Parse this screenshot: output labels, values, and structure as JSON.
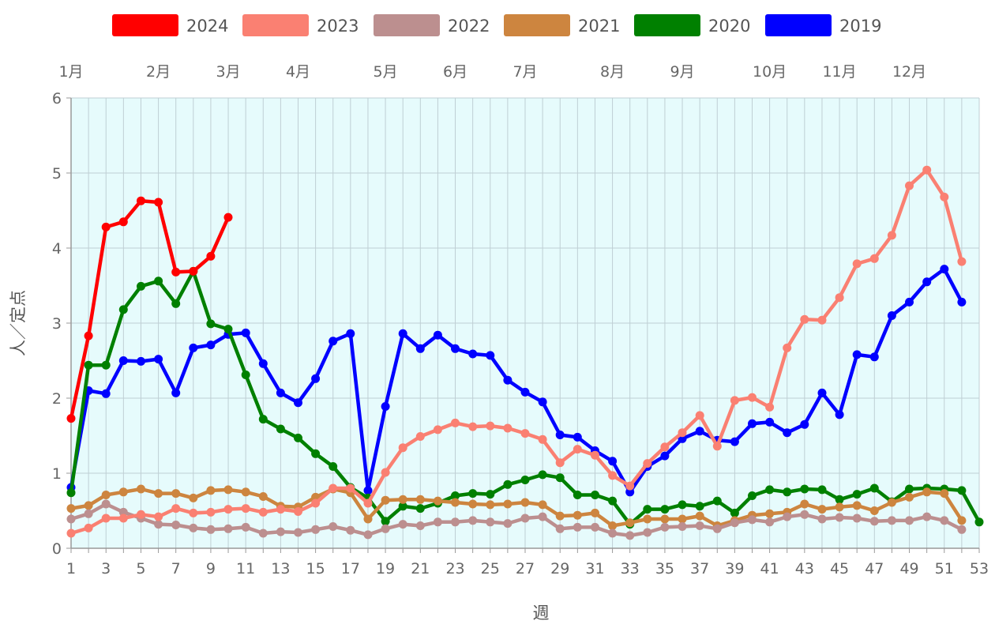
{
  "chart_data": {
    "type": "line",
    "ylabel": "人／定点",
    "xlabel": "週",
    "ylim": [
      0,
      6
    ],
    "xlim": [
      1,
      53
    ],
    "y_ticks": [
      "0",
      "1",
      "2",
      "3",
      "4",
      "5",
      "6"
    ],
    "x_ticks": [
      "1",
      "3",
      "5",
      "7",
      "9",
      "11",
      "13",
      "15",
      "17",
      "19",
      "21",
      "23",
      "25",
      "27",
      "29",
      "31",
      "33",
      "35",
      "37",
      "39",
      "41",
      "43",
      "45",
      "47",
      "49",
      "51",
      "53"
    ],
    "months": [
      {
        "label": "1月",
        "week": 1
      },
      {
        "label": "2月",
        "week": 6
      },
      {
        "label": "3月",
        "week": 10
      },
      {
        "label": "4月",
        "week": 14
      },
      {
        "label": "5月",
        "week": 19
      },
      {
        "label": "6月",
        "week": 23
      },
      {
        "label": "7月",
        "week": 27
      },
      {
        "label": "8月",
        "week": 32
      },
      {
        "label": "9月",
        "week": 36
      },
      {
        "label": "10月",
        "week": 41
      },
      {
        "label": "11月",
        "week": 45
      },
      {
        "label": "12月",
        "week": 49
      }
    ],
    "grid": true,
    "legend_position": "top",
    "plot_background": "#e6fbfc",
    "series": [
      {
        "name": "2024",
        "color": "#ff0000",
        "values": [
          1.73,
          2.83,
          4.28,
          4.35,
          4.63,
          4.61,
          3.68,
          3.69,
          3.89,
          4.41
        ]
      },
      {
        "name": "2023",
        "color": "#fa8072",
        "values": [
          0.2,
          0.27,
          0.4,
          0.4,
          0.45,
          0.42,
          0.53,
          0.47,
          0.48,
          0.52,
          0.53,
          0.48,
          0.52,
          0.49,
          0.6,
          0.8,
          0.8,
          0.6,
          1.01,
          1.34,
          1.49,
          1.58,
          1.67,
          1.62,
          1.63,
          1.6,
          1.53,
          1.45,
          1.14,
          1.32,
          1.24,
          0.97,
          0.83,
          1.13,
          1.35,
          1.54,
          1.77,
          1.36,
          1.97,
          2.01,
          1.88,
          2.67,
          3.05,
          3.04,
          3.34,
          3.79,
          3.86,
          4.17,
          4.83,
          5.04,
          4.68,
          3.82
        ]
      },
      {
        "name": "2022",
        "color": "#bc8f8f",
        "values": [
          0.39,
          0.46,
          0.59,
          0.48,
          0.4,
          0.32,
          0.31,
          0.27,
          0.25,
          0.26,
          0.28,
          0.2,
          0.22,
          0.21,
          0.25,
          0.29,
          0.24,
          0.18,
          0.26,
          0.32,
          0.3,
          0.35,
          0.35,
          0.37,
          0.35,
          0.33,
          0.4,
          0.42,
          0.26,
          0.28,
          0.28,
          0.2,
          0.17,
          0.21,
          0.28,
          0.29,
          0.3,
          0.26,
          0.34,
          0.38,
          0.35,
          0.42,
          0.45,
          0.39,
          0.41,
          0.4,
          0.36,
          0.37,
          0.37,
          0.42,
          0.37,
          0.25
        ]
      },
      {
        "name": "2021",
        "color": "#cd853f",
        "values": [
          0.53,
          0.57,
          0.71,
          0.75,
          0.79,
          0.73,
          0.73,
          0.67,
          0.77,
          0.78,
          0.75,
          0.69,
          0.56,
          0.55,
          0.68,
          0.79,
          0.74,
          0.39,
          0.64,
          0.65,
          0.65,
          0.63,
          0.61,
          0.59,
          0.58,
          0.59,
          0.61,
          0.58,
          0.43,
          0.44,
          0.47,
          0.3,
          0.34,
          0.39,
          0.39,
          0.39,
          0.43,
          0.3,
          0.37,
          0.44,
          0.46,
          0.48,
          0.59,
          0.52,
          0.55,
          0.57,
          0.5,
          0.61,
          0.68,
          0.75,
          0.73,
          0.37
        ]
      },
      {
        "name": "2020",
        "color": "#008000",
        "values": [
          0.74,
          2.44,
          2.44,
          3.18,
          3.49,
          3.56,
          3.26,
          3.69,
          2.99,
          2.92,
          2.31,
          1.72,
          1.59,
          1.47,
          1.26,
          1.09,
          0.81,
          0.67,
          0.36,
          0.56,
          0.53,
          0.6,
          0.7,
          0.73,
          0.72,
          0.85,
          0.91,
          0.98,
          0.94,
          0.71,
          0.71,
          0.63,
          0.32,
          0.52,
          0.52,
          0.58,
          0.56,
          0.63,
          0.47,
          0.7,
          0.78,
          0.75,
          0.79,
          0.78,
          0.65,
          0.72,
          0.8,
          0.62,
          0.79,
          0.8,
          0.79,
          0.77,
          0.35
        ]
      },
      {
        "name": "2019",
        "color": "#0000ff",
        "values": [
          0.81,
          2.1,
          2.06,
          2.5,
          2.49,
          2.52,
          2.07,
          2.67,
          2.71,
          2.85,
          2.87,
          2.46,
          2.07,
          1.94,
          2.26,
          2.76,
          2.86,
          0.77,
          1.89,
          2.86,
          2.66,
          2.84,
          2.66,
          2.59,
          2.57,
          2.24,
          2.08,
          1.95,
          1.51,
          1.48,
          1.3,
          1.16,
          0.75,
          1.09,
          1.23,
          1.46,
          1.56,
          1.44,
          1.42,
          1.66,
          1.68,
          1.54,
          1.65,
          2.07,
          1.78,
          2.58,
          2.55,
          3.1,
          3.28,
          3.55,
          3.72,
          3.28
        ]
      }
    ]
  }
}
